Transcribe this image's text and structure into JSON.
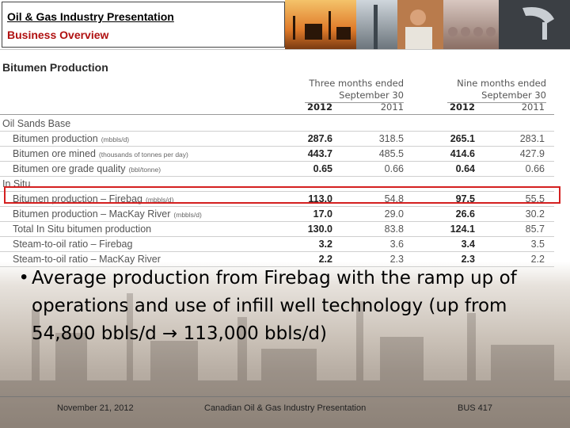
{
  "header": {
    "title": "Oil & Gas Industry Presentation",
    "subtitle": "Business Overview"
  },
  "table": {
    "section_title": "Bitumen Production",
    "period_headers": [
      {
        "line1": "Three months ended",
        "line2": "September 30"
      },
      {
        "line1": "Nine months ended",
        "line2": "September 30"
      }
    ],
    "year_headers": [
      "2012",
      "2011",
      "2012",
      "2011"
    ],
    "rows": [
      {
        "type": "group",
        "label": "Oil Sands Base",
        "unit": "",
        "values": [
          "",
          "",
          "",
          ""
        ]
      },
      {
        "type": "item",
        "label": "Bitumen production",
        "unit": "(mbbls/d)",
        "values": [
          "287.6",
          "318.5",
          "265.1",
          "283.1"
        ]
      },
      {
        "type": "item",
        "label": "Bitumen ore mined",
        "unit": "(thousands of tonnes per day)",
        "values": [
          "443.7",
          "485.5",
          "414.6",
          "427.9"
        ]
      },
      {
        "type": "item",
        "label": "Bitumen ore grade quality",
        "unit": "(bbl/tonne)",
        "values": [
          "0.65",
          "0.66",
          "0.64",
          "0.66"
        ]
      },
      {
        "type": "group",
        "label": "In Situ",
        "unit": "",
        "values": [
          "",
          "",
          "",
          ""
        ]
      },
      {
        "type": "item",
        "label": "Bitumen production – Firebag",
        "unit": "(mbbls/d)",
        "values": [
          "113.0",
          "54.8",
          "97.5",
          "55.5"
        ]
      },
      {
        "type": "item",
        "label": "Bitumen production – MacKay River",
        "unit": "(mbbls/d)",
        "values": [
          "17.0",
          "29.0",
          "26.6",
          "30.2"
        ]
      },
      {
        "type": "item",
        "label": "Total In Situ bitumen production",
        "unit": "",
        "values": [
          "130.0",
          "83.8",
          "124.1",
          "85.7"
        ]
      },
      {
        "type": "item",
        "label": "Steam-to-oil ratio – Firebag",
        "unit": "",
        "values": [
          "3.2",
          "3.6",
          "3.4",
          "3.5"
        ]
      },
      {
        "type": "item",
        "label": "Steam-to-oil ratio – MacKay River",
        "unit": "",
        "values": [
          "2.2",
          "2.3",
          "2.3",
          "2.2"
        ]
      }
    ]
  },
  "bullet": {
    "before_arrow": "Average production from Firebag with the ramp up of operations and use of infill well technology (up from 54,800 bbls/d ",
    "after_arrow": " 113,000 bbls/d)"
  },
  "footer": {
    "date": "November 21, 2012",
    "center": "Canadian Oil & Gas Industry Presentation",
    "course": "BUS 417"
  },
  "colors": {
    "subtitle": "#b01010",
    "highlight": "#d42020"
  }
}
